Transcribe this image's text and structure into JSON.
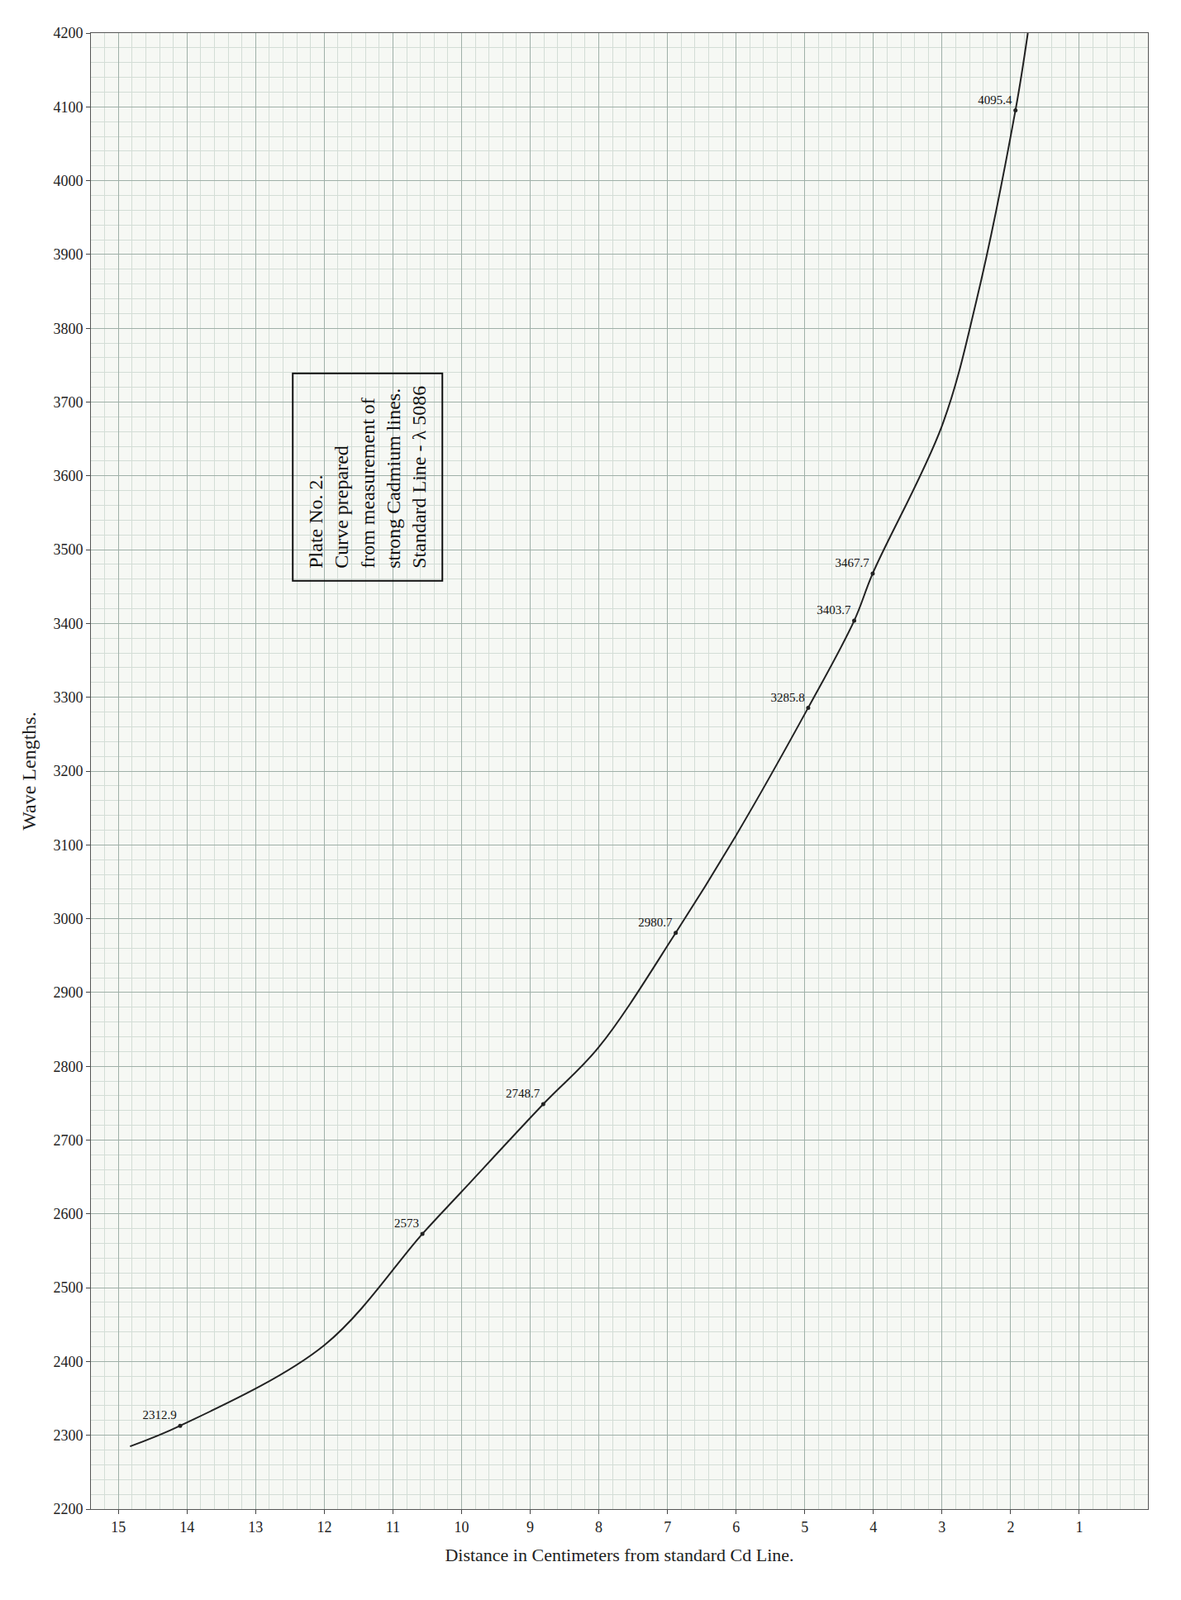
{
  "chart_data": {
    "type": "line",
    "x_label": "Distance in Centimeters from standard Cd Line.",
    "y_label": "Wave Lengths.",
    "annotations": [
      {
        "text": [
          "Plate No. 2.",
          "Curve prepared",
          "from measurement of",
          "strong Cadmium lines.",
          "Standard Line - λ 5086"
        ]
      }
    ],
    "xlim": [
      15.4,
      0
    ],
    "xticks": [
      1,
      2,
      3,
      4,
      5,
      6,
      7,
      8,
      9,
      10,
      11,
      12,
      13,
      14,
      15
    ],
    "ylim": [
      2200,
      4200
    ],
    "yticks": [
      2200,
      2300,
      2400,
      2500,
      2600,
      2700,
      2800,
      2900,
      3000,
      3100,
      3200,
      3300,
      3400,
      3500,
      3600,
      3700,
      3800,
      3900,
      4000,
      4100,
      4200
    ],
    "grid": true,
    "series": [
      {
        "type": "line",
        "line_style": "solid",
        "color": "#222222",
        "x": [
          14.83,
          14.1,
          12,
          10.57,
          10,
          8.81,
          8,
          6.88,
          6,
          4.95,
          4.28,
          4.01,
          3,
          2.5,
          1.93,
          1.75
        ],
        "values": [
          2285,
          2312.9,
          2422,
          2573,
          2630,
          2748.7,
          2826,
          2980.7,
          3113,
          3285.8,
          3403.7,
          3467.7,
          3668,
          3837,
          4095.4,
          4200
        ]
      },
      {
        "type": "scatter",
        "marker": "circle",
        "color": "#222222",
        "data_labels": true,
        "x": [
          14.1,
          10.57,
          8.81,
          6.88,
          4.95,
          4.28,
          4.01,
          1.93
        ],
        "values": [
          2312.9,
          2573,
          2748.7,
          2980.7,
          3285.8,
          3403.7,
          3467.7,
          4095.4
        ]
      }
    ]
  }
}
